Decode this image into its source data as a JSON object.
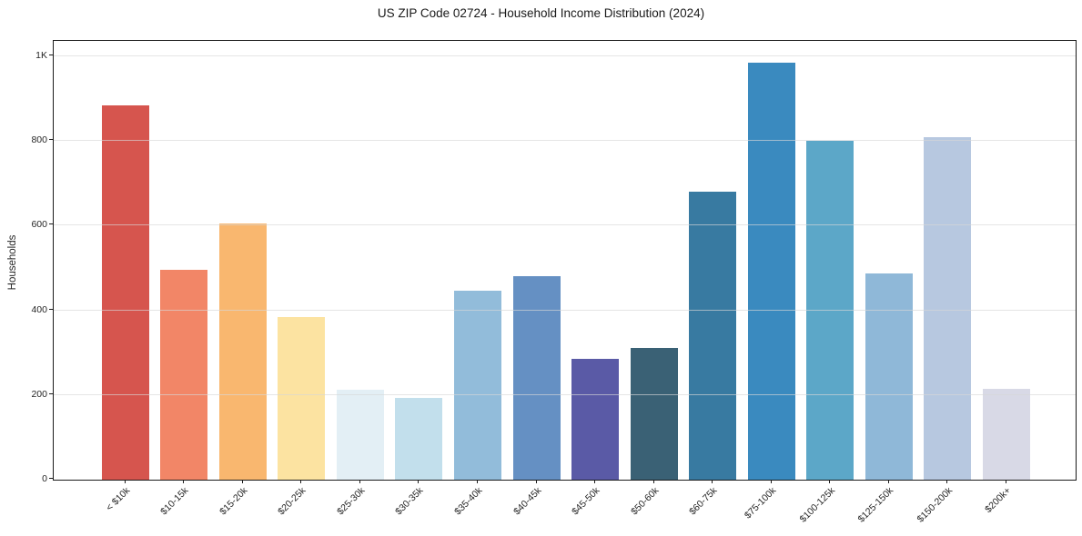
{
  "chart_data": {
    "type": "bar",
    "title": "US ZIP Code 02724 - Household Income Distribution (2024)",
    "xlabel": "",
    "ylabel": "Households",
    "categories": [
      "< $10k",
      "$10-15k",
      "$15-20k",
      "$20-25k",
      "$25-30k",
      "$30-35k",
      "$35-40k",
      "$40-45k",
      "$45-50k",
      "$50-60k",
      "$60-75k",
      "$75-100k",
      "$100-125k",
      "$125-150k",
      "$150-200k",
      "$200k+"
    ],
    "values": [
      883,
      495,
      605,
      383,
      213,
      193,
      447,
      480,
      286,
      311,
      681,
      985,
      801,
      487,
      809,
      215
    ],
    "bar_colors": [
      "#d6554e",
      "#f28667",
      "#f9b76f",
      "#fce3a1",
      "#e3eff5",
      "#c2dfec",
      "#92bcda",
      "#6590c3",
      "#5a5aa6",
      "#3a6175",
      "#387aa1",
      "#3a8abf",
      "#5ca7c8",
      "#8fb8d8",
      "#b7c8e0",
      "#d8d9e6"
    ],
    "ylim": [
      0,
      1036
    ],
    "yticks": [
      {
        "value": 0,
        "label": "0"
      },
      {
        "value": 200,
        "label": "200"
      },
      {
        "value": 400,
        "label": "400"
      },
      {
        "value": 600,
        "label": "600"
      },
      {
        "value": 800,
        "label": "800"
      },
      {
        "value": 1000,
        "label": "1K"
      }
    ],
    "grid": "horizontal",
    "legend": "none",
    "x_label_rotation_deg": 45
  }
}
